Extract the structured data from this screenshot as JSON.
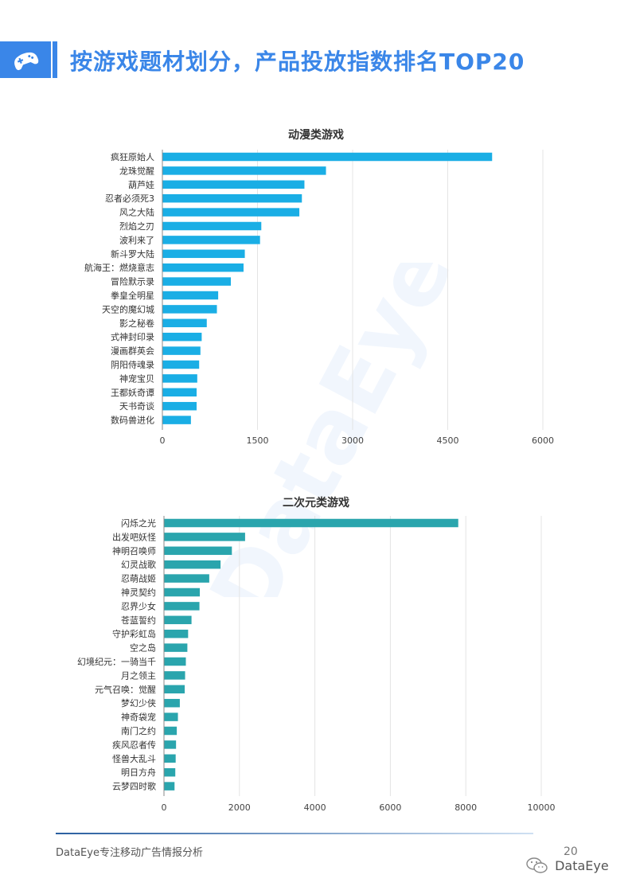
{
  "header": {
    "title": "按游戏题材划分，产品投放指数排名TOP20",
    "icon": "gamepad-icon"
  },
  "footer": {
    "text": "DataEye专注移动广告情报分析",
    "page_number": "20",
    "brand": "DataEye",
    "brand_icon": "wechat-icon"
  },
  "watermark": "DataEye",
  "chart_data": [
    {
      "type": "bar",
      "orientation": "horizontal",
      "title": "动漫类游戏",
      "color": "#1aaee5",
      "categories": [
        "疯狂原始人",
        "龙珠觉醒",
        "葫芦娃",
        "忍者必须死3",
        "风之大陆",
        "烈焰之刃",
        "波利来了",
        "新斗罗大陆",
        "航海王：燃烧意志",
        "冒险默示录",
        "拳皇全明星",
        "天空的魔幻城",
        "影之秘卷",
        "式神封印录",
        "漫画群英会",
        "阴阳侍魂录",
        "神宠宝贝",
        "王都妖奇谭",
        "天书奇谈",
        "数码兽进化"
      ],
      "values": [
        5200,
        2580,
        2240,
        2200,
        2160,
        1560,
        1540,
        1300,
        1280,
        1080,
        880,
        860,
        700,
        620,
        600,
        580,
        550,
        540,
        540,
        450
      ],
      "xlim": [
        0,
        6000
      ],
      "ticks": [
        0,
        1500,
        3000,
        4500,
        6000
      ],
      "grid": true
    },
    {
      "type": "bar",
      "orientation": "horizontal",
      "title": "二次元类游戏",
      "color": "#2aa5ad",
      "categories": [
        "闪烁之光",
        "出发吧妖怪",
        "神明召唤师",
        "幻灵战歌",
        "忍萌战姬",
        "神灵契约",
        "忍界少女",
        "苍蓝誓约",
        "守护彩虹岛",
        "空之岛",
        "幻境纪元：一骑当千",
        "月之领主",
        "元气召唤：觉醒",
        "梦幻少侠",
        "神奇袋宠",
        "南门之约",
        "疾风忍者传",
        "怪兽大乱斗",
        "明日方舟",
        "云梦四时歌"
      ],
      "values": [
        7800,
        2150,
        1800,
        1500,
        1200,
        950,
        940,
        730,
        640,
        620,
        580,
        560,
        550,
        420,
        370,
        340,
        320,
        310,
        300,
        280
      ],
      "xlim": [
        0,
        10000
      ],
      "ticks": [
        0,
        2000,
        4000,
        6000,
        8000,
        10000
      ],
      "grid": true
    }
  ]
}
